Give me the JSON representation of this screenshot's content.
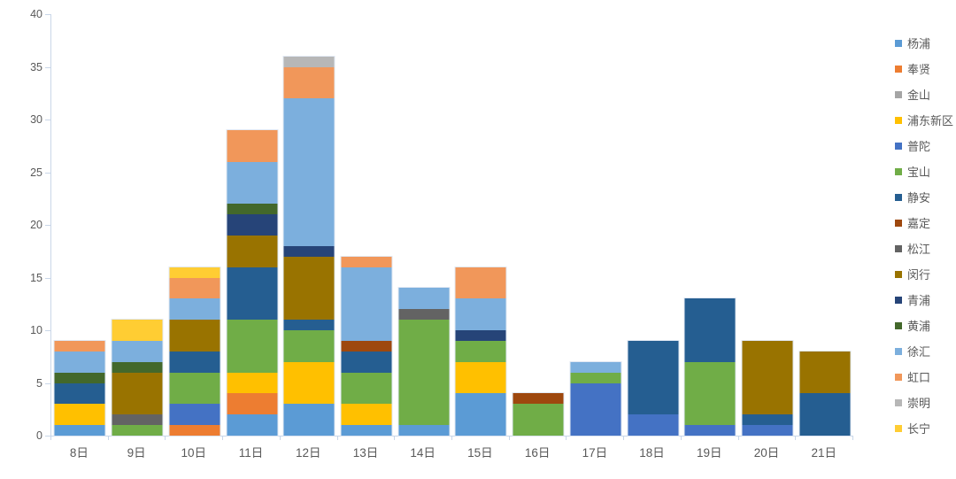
{
  "chart_data": {
    "type": "bar",
    "stacked": true,
    "title": "",
    "xlabel": "",
    "ylabel": "",
    "ylim": [
      0,
      40
    ],
    "yticks": [
      0,
      5,
      10,
      15,
      20,
      25,
      30,
      35,
      40
    ],
    "grid": false,
    "legend_position": "right",
    "categories": [
      "8日",
      "9日",
      "10日",
      "11日",
      "12日",
      "13日",
      "14日",
      "15日",
      "16日",
      "17日",
      "18日",
      "19日",
      "20日",
      "21日"
    ],
    "series": [
      {
        "name": "杨浦",
        "color": "#5B9BD5",
        "values": [
          1,
          0,
          0,
          2,
          3,
          1,
          1,
          4,
          0,
          0,
          0,
          0,
          0,
          0
        ]
      },
      {
        "name": "奉贤",
        "color": "#ED7D31",
        "values": [
          0,
          0,
          1,
          2,
          0,
          0,
          0,
          0,
          0,
          0,
          0,
          0,
          0,
          0
        ]
      },
      {
        "name": "金山",
        "color": "#A5A5A5",
        "values": [
          0,
          0,
          0,
          0,
          0,
          0,
          0,
          0,
          0,
          0,
          0,
          0,
          0,
          0
        ]
      },
      {
        "name": "浦东新区",
        "color": "#FFC000",
        "values": [
          2,
          0,
          0,
          2,
          4,
          2,
          0,
          3,
          0,
          0,
          0,
          0,
          0,
          0
        ]
      },
      {
        "name": "普陀",
        "color": "#4472C4",
        "values": [
          0,
          0,
          2,
          0,
          0,
          0,
          0,
          0,
          0,
          5,
          2,
          1,
          1,
          0
        ]
      },
      {
        "name": "宝山",
        "color": "#70AD47",
        "values": [
          0,
          1,
          3,
          5,
          3,
          3,
          10,
          2,
          3,
          1,
          0,
          6,
          0,
          0
        ]
      },
      {
        "name": "静安",
        "color": "#255E91",
        "values": [
          2,
          0,
          2,
          5,
          1,
          2,
          0,
          0,
          0,
          0,
          7,
          6,
          1,
          4
        ]
      },
      {
        "name": "嘉定",
        "color": "#9E480E",
        "values": [
          0,
          0,
          0,
          0,
          0,
          1,
          0,
          0,
          1,
          0,
          0,
          0,
          0,
          0
        ]
      },
      {
        "name": "松江",
        "color": "#636363",
        "values": [
          0,
          1,
          0,
          0,
          0,
          0,
          1,
          0,
          0,
          0,
          0,
          0,
          0,
          0
        ]
      },
      {
        "name": "闵行",
        "color": "#997300",
        "values": [
          0,
          4,
          3,
          3,
          6,
          0,
          0,
          0,
          0,
          0,
          0,
          0,
          7,
          4
        ]
      },
      {
        "name": "青浦",
        "color": "#264478",
        "values": [
          0,
          0,
          0,
          2,
          1,
          0,
          0,
          1,
          0,
          0,
          0,
          0,
          0,
          0
        ]
      },
      {
        "name": "黄浦",
        "color": "#43682B",
        "values": [
          1,
          1,
          0,
          1,
          0,
          0,
          0,
          0,
          0,
          0,
          0,
          0,
          0,
          0
        ]
      },
      {
        "name": "徐汇",
        "color": "#7CAFDD",
        "values": [
          2,
          2,
          2,
          4,
          14,
          7,
          2,
          3,
          0,
          1,
          0,
          0,
          0,
          0
        ]
      },
      {
        "name": "虹口",
        "color": "#F1975A",
        "values": [
          1,
          0,
          2,
          3,
          3,
          1,
          0,
          3,
          0,
          0,
          0,
          0,
          0,
          0
        ]
      },
      {
        "name": "崇明",
        "color": "#B7B7B7",
        "values": [
          0,
          0,
          0,
          0,
          1,
          0,
          0,
          0,
          0,
          0,
          0,
          0,
          0,
          0
        ]
      },
      {
        "name": "长宁",
        "color": "#FFCD33",
        "values": [
          0,
          2,
          1,
          0,
          0,
          0,
          0,
          0,
          0,
          0,
          0,
          0,
          0,
          0
        ]
      }
    ],
    "colors": {
      "background": "#FFFFFF",
      "axis_line": "#C9D6E8",
      "tick_label": "#595959",
      "legend_text": "#595959"
    }
  }
}
